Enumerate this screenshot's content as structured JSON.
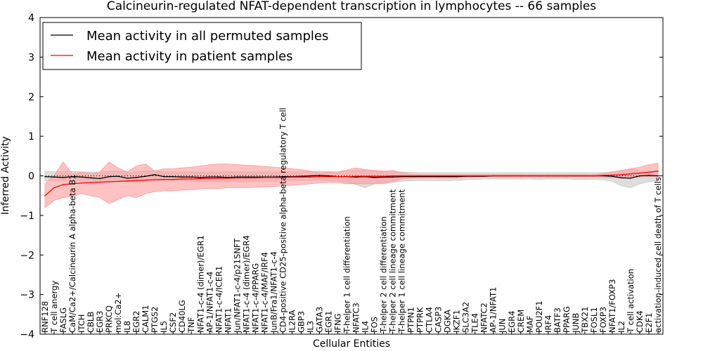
{
  "chart_data": {
    "type": "line",
    "title": "Calcineurin-regulated NFAT-dependent transcription in lymphocytes -- 66 samples",
    "xlabel": "Cellular Entities",
    "ylabel": "Inferred Activity",
    "ylim": [
      -4,
      4
    ],
    "yticks": [
      -4,
      -3,
      -2,
      -1,
      0,
      1,
      2,
      3,
      4
    ],
    "legend_position": "top-left",
    "colors": {
      "permuted": "#000000",
      "patient": "#ff0000",
      "permuted_band": "#c8c8c8",
      "patient_band": "#ff9a9a"
    },
    "categories": [
      "RNF128",
      "T cell anergy",
      "FASLG",
      "CaM/Ca2+/Calcineurin A alpha-beta B1",
      "ITCH",
      "CBLB",
      "EGR3",
      "PRKCQ",
      "mol:Ca2+",
      "IL8",
      "EGR2",
      "CALM1",
      "PTGS2",
      "IL5",
      "CSF2",
      "CD40LG",
      "TNF",
      "NFAT1-c-4 (dimer)/EGR1",
      "AP-1/NFAT1-c-4",
      "NFAT1-c-4/ICER1",
      "NFAT1",
      "Jun/NFAT1-c-4/p21SNFT",
      "NFAT1-c-4 (dimer)/EGR4",
      "NFAT1-c-4/PPARG",
      "NFAT1-c-4/MAF/IRF4",
      "JunB/Fra1/NFAT1-c-4",
      "CD4-positive CD25-positive alpha-beta regulatory T cell",
      "IL2RA",
      "GBP3",
      "IL3",
      "GATA3",
      "EGR1",
      "IFNG",
      "T-helper 1 cell differentiation",
      "NFATC3",
      "IL4",
      "FOS",
      "T-helper 2 cell differentiation",
      "T-helper 2 cell lineage commitment",
      "T-helper 1 cell lineage commitment",
      "PTPN1",
      "PTPRK",
      "CTLA4",
      "CASP3",
      "DGKA",
      "IKZF1",
      "SLC3A2",
      "TLE4",
      "NFATC2",
      "AP-1/NFAT1",
      "JUN",
      "EGR4",
      "CREM",
      "MAF",
      "POU2F1",
      "IRF4",
      "BATF3",
      "PPARG",
      "JUNB",
      "TBX21",
      "FOSL1",
      "FOXP3",
      "NFAT1/FOXP3",
      "IL2",
      "T cell activation",
      "CDK4",
      "E2F1",
      "activation-induced cell death of T cells"
    ],
    "series": [
      {
        "name": "Mean activity in all permuted samples",
        "values": [
          -0.02,
          -0.03,
          -0.04,
          -0.02,
          -0.03,
          -0.05,
          -0.07,
          -0.02,
          -0.01,
          -0.06,
          -0.04,
          -0.01,
          0.03,
          -0.02,
          -0.02,
          -0.03,
          -0.03,
          -0.04,
          -0.03,
          -0.03,
          -0.04,
          -0.03,
          -0.03,
          -0.03,
          -0.03,
          -0.03,
          -0.02,
          -0.02,
          -0.01,
          0.0,
          0.01,
          0.0,
          -0.02,
          -0.02,
          -0.03,
          -0.02,
          -0.04,
          -0.03,
          -0.03,
          -0.02,
          -0.02,
          -0.02,
          -0.02,
          -0.02,
          -0.02,
          -0.02,
          -0.01,
          -0.01,
          -0.01,
          0.0,
          0.0,
          0.0,
          0.0,
          0.0,
          0.0,
          0.0,
          0.0,
          0.0,
          0.0,
          0.0,
          0.0,
          0.0,
          -0.01,
          -0.05,
          -0.06,
          0.0,
          0.01,
          0.0
        ],
        "band_low": [
          -0.12,
          -0.12,
          -0.13,
          -0.12,
          -0.12,
          -0.13,
          -0.15,
          -0.12,
          -0.1,
          -0.15,
          -0.12,
          -0.12,
          -0.1,
          -0.14,
          -0.13,
          -0.12,
          -0.14,
          -0.15,
          -0.14,
          -0.15,
          -0.15,
          -0.15,
          -0.15,
          -0.14,
          -0.14,
          -0.14,
          -0.13,
          -0.12,
          -0.12,
          -0.12,
          -0.11,
          -0.12,
          -0.14,
          -0.16,
          -0.22,
          -0.3,
          -0.2,
          -0.16,
          -0.16,
          -0.14,
          -0.12,
          -0.12,
          -0.12,
          -0.12,
          -0.12,
          -0.11,
          -0.1,
          -0.09,
          -0.08,
          -0.08,
          -0.08,
          -0.08,
          -0.08,
          -0.08,
          -0.09,
          -0.08,
          -0.08,
          -0.08,
          -0.09,
          -0.09,
          -0.09,
          -0.1,
          -0.14,
          -0.25,
          -0.3,
          -0.2,
          -0.15,
          -0.12
        ],
        "band_high": [
          0.12,
          0.1,
          0.11,
          0.11,
          0.1,
          0.1,
          0.09,
          0.11,
          0.12,
          0.09,
          0.1,
          0.12,
          0.13,
          0.1,
          0.1,
          0.1,
          0.1,
          0.09,
          0.1,
          0.1,
          0.1,
          0.1,
          0.1,
          0.1,
          0.1,
          0.1,
          0.1,
          0.1,
          0.1,
          0.11,
          0.12,
          0.11,
          0.1,
          0.12,
          0.14,
          0.16,
          0.12,
          0.1,
          0.1,
          0.1,
          0.09,
          0.08,
          0.08,
          0.08,
          0.08,
          0.08,
          0.08,
          0.08,
          0.08,
          0.08,
          0.08,
          0.08,
          0.08,
          0.08,
          0.08,
          0.08,
          0.08,
          0.08,
          0.08,
          0.08,
          0.08,
          0.08,
          0.1,
          0.14,
          0.18,
          0.12,
          0.12,
          0.1
        ]
      },
      {
        "name": "Mean activity in patient samples",
        "values": [
          -0.5,
          -0.3,
          -0.22,
          -0.2,
          -0.18,
          -0.17,
          -0.16,
          -0.15,
          -0.14,
          -0.13,
          -0.12,
          -0.11,
          -0.1,
          -0.09,
          -0.09,
          -0.08,
          -0.08,
          -0.07,
          -0.07,
          -0.06,
          -0.06,
          -0.05,
          -0.05,
          -0.05,
          -0.04,
          -0.04,
          -0.04,
          -0.03,
          -0.03,
          -0.03,
          -0.02,
          -0.02,
          -0.02,
          -0.02,
          -0.01,
          -0.01,
          -0.01,
          -0.01,
          0.0,
          0.0,
          0.0,
          0.0,
          0.0,
          0.0,
          0.0,
          0.0,
          0.0,
          0.0,
          0.0,
          0.0,
          0.0,
          0.0,
          0.0,
          0.0,
          0.0,
          0.0,
          0.0,
          0.0,
          0.0,
          0.0,
          0.0,
          0.01,
          0.02,
          0.03,
          0.05,
          0.07,
          0.09,
          0.12
        ],
        "band_low": [
          -0.8,
          -0.62,
          -0.55,
          -0.52,
          -0.45,
          -0.5,
          -0.55,
          -0.7,
          -0.6,
          -0.5,
          -0.55,
          -0.45,
          -0.4,
          -0.38,
          -0.38,
          -0.36,
          -0.35,
          -0.33,
          -0.32,
          -0.32,
          -0.3,
          -0.3,
          -0.3,
          -0.29,
          -0.28,
          -0.27,
          -0.25,
          -0.24,
          -0.22,
          -0.2,
          -0.18,
          -0.17,
          -0.17,
          -0.2,
          -0.2,
          -0.2,
          -0.2,
          -0.2,
          -0.15,
          -0.08,
          -0.06,
          -0.05,
          -0.05,
          -0.05,
          -0.05,
          -0.05,
          -0.04,
          -0.03,
          -0.02,
          -0.02,
          -0.02,
          -0.02,
          -0.02,
          -0.02,
          -0.02,
          -0.02,
          -0.02,
          -0.02,
          -0.02,
          -0.02,
          -0.02,
          -0.04,
          -0.04,
          -0.05,
          -0.04,
          -0.03,
          -0.02,
          -0.02
        ],
        "band_high": [
          -0.2,
          0.02,
          0.35,
          0.05,
          0.1,
          0.05,
          0.1,
          0.35,
          0.2,
          0.1,
          0.25,
          0.3,
          0.12,
          0.18,
          0.18,
          0.2,
          0.22,
          0.25,
          0.28,
          0.3,
          0.3,
          0.28,
          0.27,
          0.26,
          0.24,
          0.22,
          0.2,
          0.18,
          0.16,
          0.12,
          0.08,
          0.1,
          0.1,
          0.15,
          0.2,
          0.16,
          0.14,
          0.12,
          0.14,
          0.08,
          0.04,
          0.03,
          0.03,
          0.03,
          0.03,
          0.03,
          0.03,
          0.03,
          0.03,
          0.03,
          0.03,
          0.03,
          0.03,
          0.03,
          0.03,
          0.03,
          0.03,
          0.03,
          0.03,
          0.03,
          0.03,
          0.06,
          0.1,
          0.14,
          0.18,
          0.22,
          0.28,
          0.32
        ]
      }
    ]
  }
}
